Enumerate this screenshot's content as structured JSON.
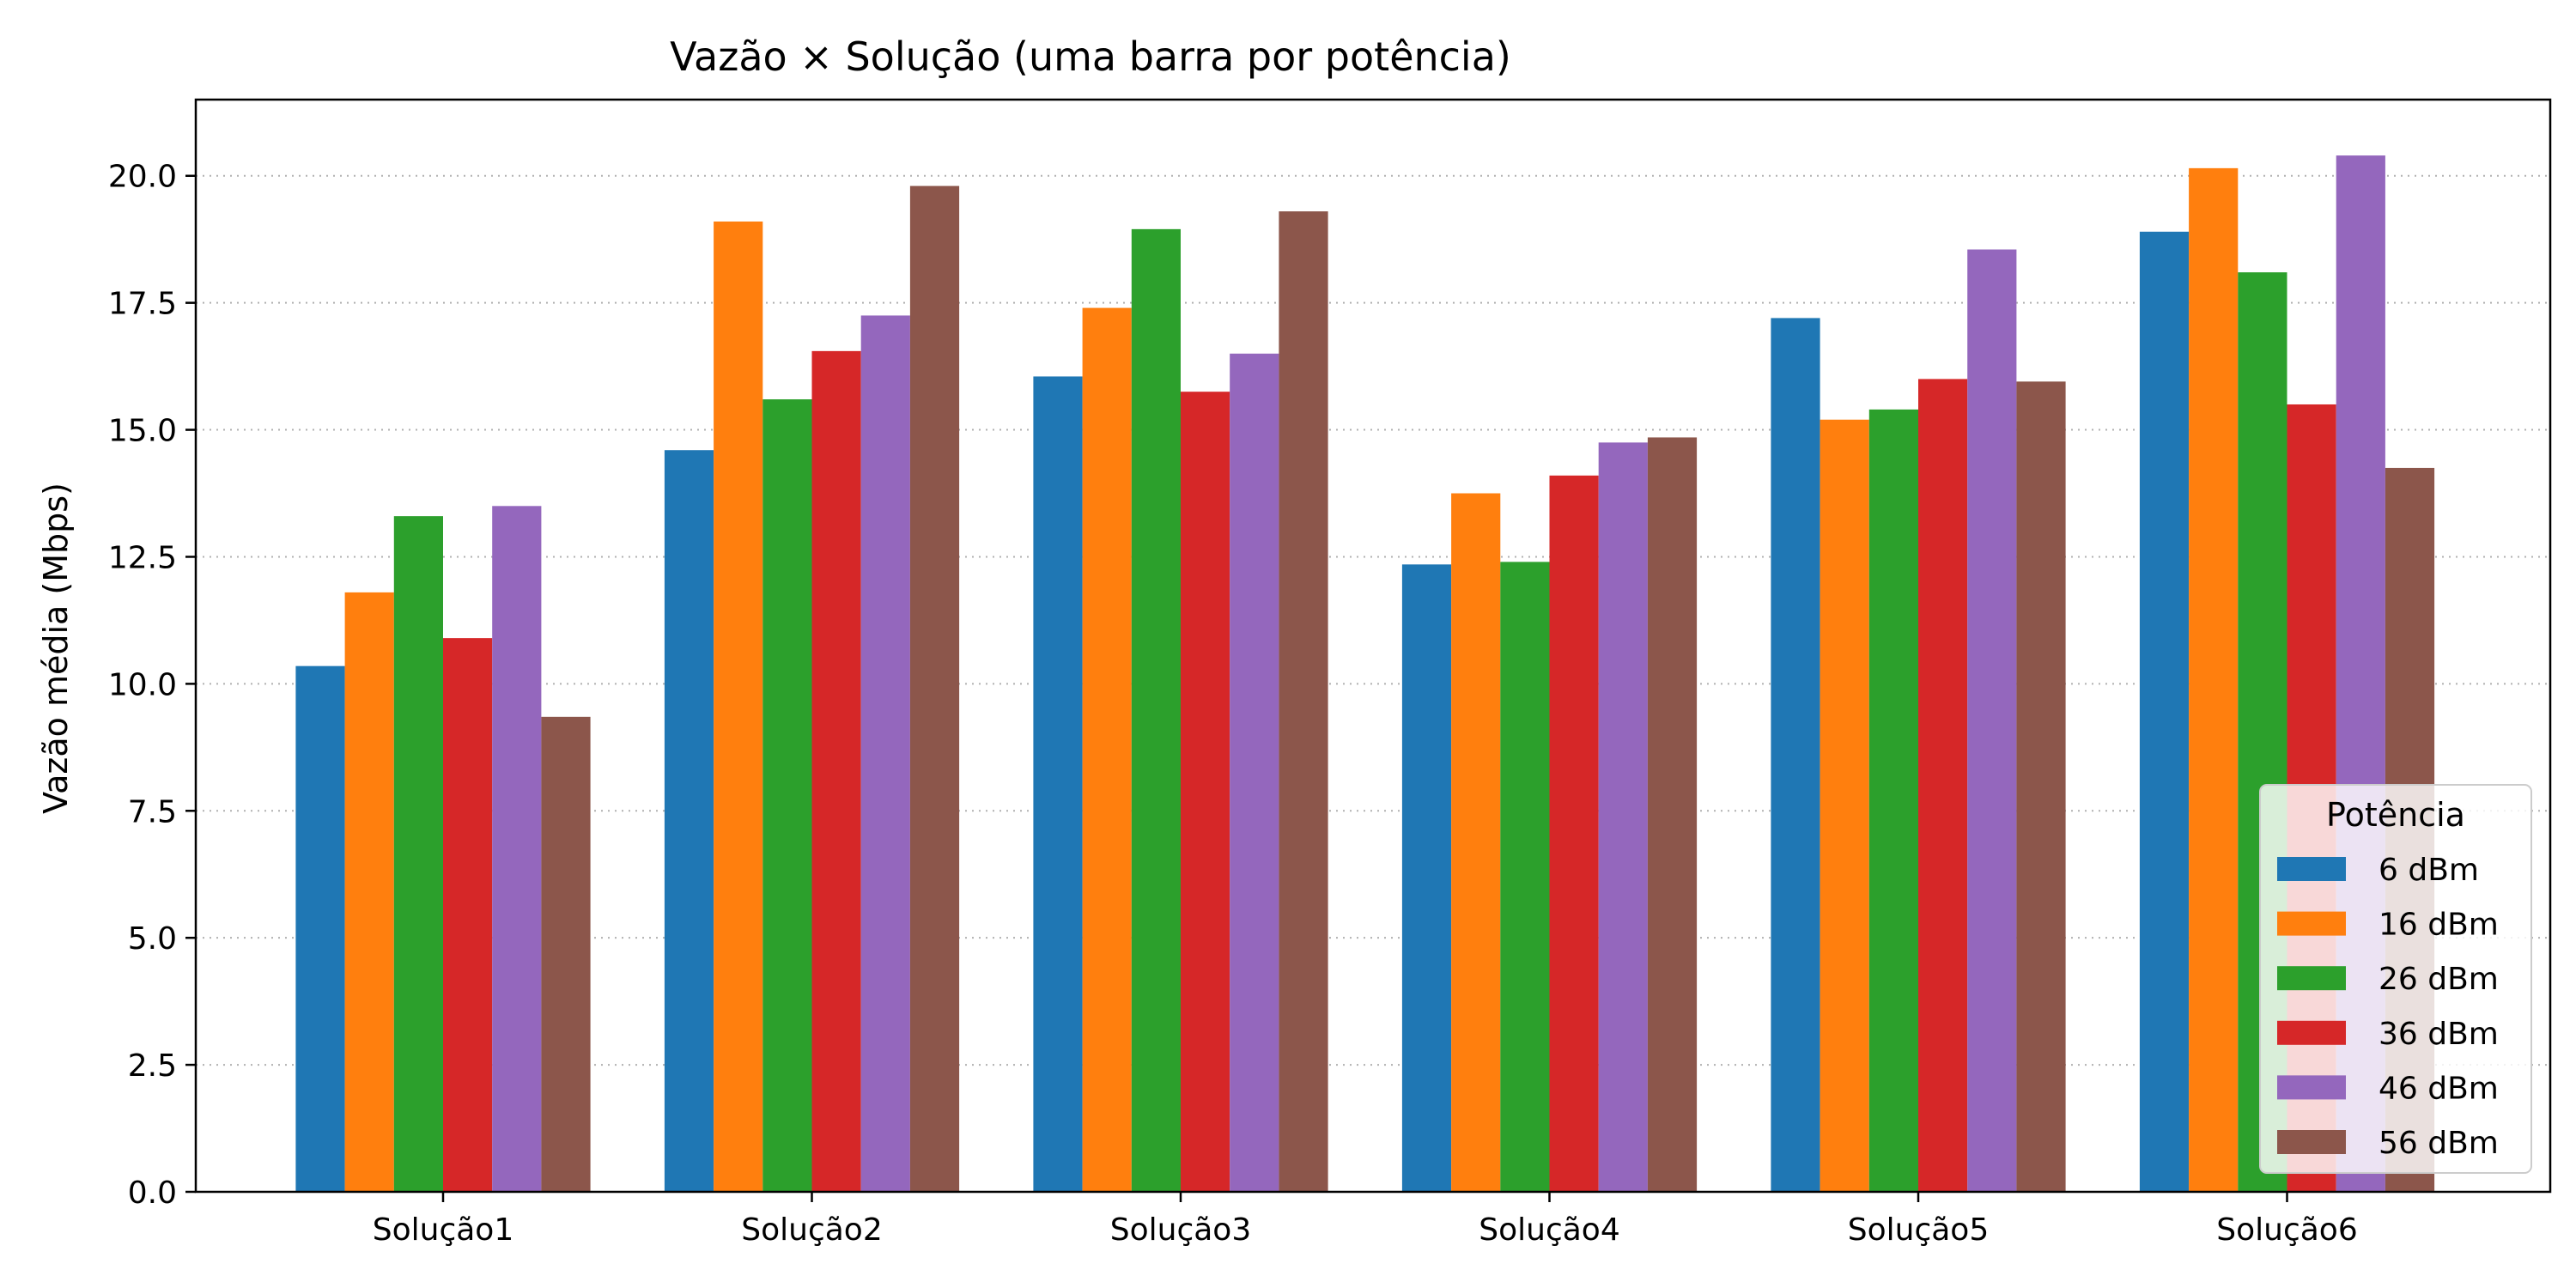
{
  "chart_data": {
    "type": "bar",
    "title": "Vazão × Solução (uma barra por potência)",
    "xlabel": "",
    "ylabel": "Vazão média (Mbps)",
    "ylim": [
      0,
      21.5
    ],
    "yticks": [
      "0.0",
      "2.5",
      "5.0",
      "7.5",
      "10.0",
      "12.5",
      "15.0",
      "17.5",
      "20.0"
    ],
    "ytick_values": [
      0,
      2.5,
      5,
      7.5,
      10,
      12.5,
      15,
      17.5,
      20
    ],
    "grid": "y-dotted",
    "categories": [
      "Solução1",
      "Solução2",
      "Solução3",
      "Solução4",
      "Solução5",
      "Solução6"
    ],
    "legend": {
      "title": "Potência",
      "placement": "lower-right"
    },
    "series": [
      {
        "name": "6 dBm",
        "color": "#1f77b4",
        "values": [
          10.35,
          14.6,
          16.05,
          12.35,
          17.2,
          18.9
        ]
      },
      {
        "name": "16 dBm",
        "color": "#ff7f0e",
        "values": [
          11.8,
          19.1,
          17.4,
          13.75,
          15.2,
          20.15
        ]
      },
      {
        "name": "26 dBm",
        "color": "#2ca02c",
        "values": [
          13.3,
          15.6,
          18.95,
          12.4,
          15.4,
          18.1
        ]
      },
      {
        "name": "36 dBm",
        "color": "#d62728",
        "values": [
          10.9,
          16.55,
          15.75,
          14.1,
          16.0,
          15.5
        ]
      },
      {
        "name": "46 dBm",
        "color": "#9467bd",
        "values": [
          13.5,
          17.25,
          16.5,
          14.75,
          18.55,
          20.4
        ]
      },
      {
        "name": "56 dBm",
        "color": "#8c564b",
        "values": [
          9.35,
          19.8,
          19.3,
          14.85,
          15.95,
          14.25
        ]
      }
    ]
  }
}
